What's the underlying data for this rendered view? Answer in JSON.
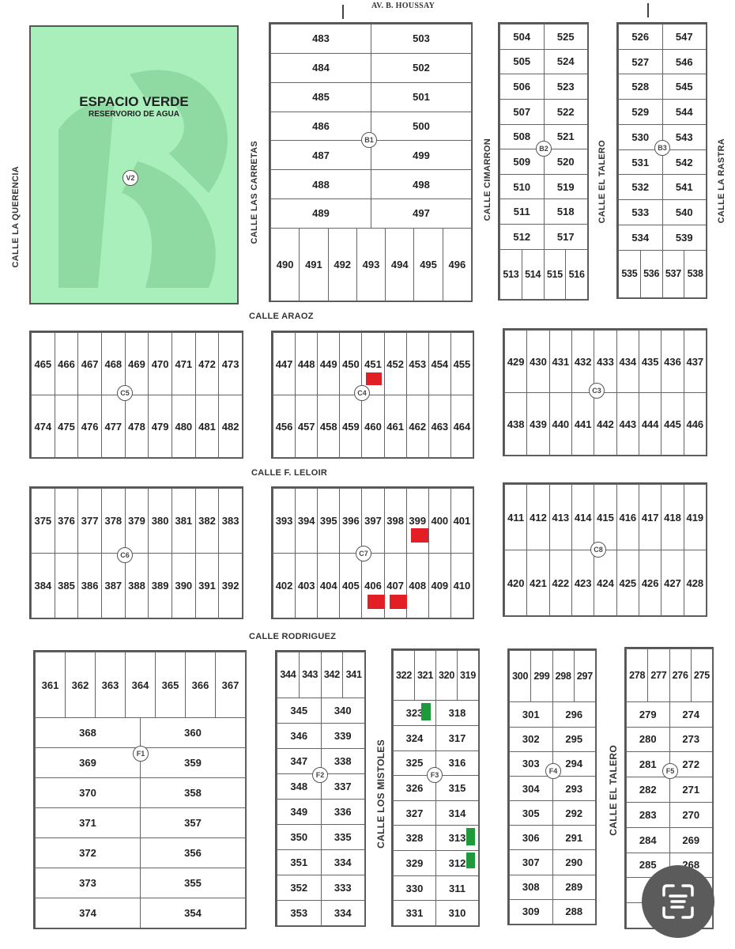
{
  "streets": {
    "top": "AV. B. HOUSSAY",
    "la_querencia": "CALLE LA QUERENCIA",
    "las_carretas": "CALLE LAS CARRETAS",
    "cimarron": "CALLE CIMARRON",
    "el_talero_top": "CALLE EL TALERO",
    "la_rastra": "CALLE LA RASTRA",
    "araoz": "CALLE ARAOZ",
    "leloir": "CALLE F. LELOIR",
    "rodriguez": "CALLE RODRIGUEZ",
    "los_mistoles": "CALLE LOS MISTOLES",
    "el_talero_bottom": "CALLE EL TALERO"
  },
  "green_space": {
    "label": "V2",
    "title": "ESPACIO VERDE",
    "subtitle": "RESERVORIO DE AGUA",
    "color": "#a8efbb"
  },
  "blocks": [
    {
      "id": "B1",
      "rows": [
        [
          "483",
          "503"
        ],
        [
          "484",
          "502"
        ],
        [
          "485",
          "501"
        ],
        [
          "486",
          "500"
        ],
        [
          "487",
          "499"
        ],
        [
          "488",
          "498"
        ],
        [
          "489",
          "497"
        ],
        [
          "490",
          "491",
          "492",
          "493",
          "494",
          "495",
          "496"
        ]
      ]
    },
    {
      "id": "B2",
      "rows": [
        [
          "504",
          "525"
        ],
        [
          "505",
          "524"
        ],
        [
          "506",
          "523"
        ],
        [
          "507",
          "522"
        ],
        [
          "508",
          "521"
        ],
        [
          "509",
          "520"
        ],
        [
          "510",
          "519"
        ],
        [
          "511",
          "518"
        ],
        [
          "512",
          "517"
        ],
        [
          "513",
          "514",
          "515",
          "516"
        ]
      ]
    },
    {
      "id": "B3",
      "rows": [
        [
          "526",
          "547"
        ],
        [
          "527",
          "546"
        ],
        [
          "528",
          "545"
        ],
        [
          "529",
          "544"
        ],
        [
          "530",
          "543"
        ],
        [
          "531",
          "542"
        ],
        [
          "532",
          "541"
        ],
        [
          "533",
          "540"
        ],
        [
          "534",
          "539"
        ],
        [
          "535",
          "536",
          "537",
          "538"
        ]
      ]
    },
    {
      "id": "C5",
      "rows": [
        [
          "465",
          "466",
          "467",
          "468",
          "469",
          "470",
          "471",
          "472",
          "473"
        ],
        [
          "474",
          "475",
          "476",
          "477",
          "478",
          "479",
          "480",
          "481",
          "482"
        ]
      ]
    },
    {
      "id": "C4",
      "rows": [
        [
          "447",
          "448",
          "449",
          "450",
          "451",
          "452",
          "453",
          "454",
          "455"
        ],
        [
          "456",
          "457",
          "458",
          "459",
          "460",
          "461",
          "462",
          "463",
          "464"
        ]
      ]
    },
    {
      "id": "C3",
      "rows": [
        [
          "429",
          "430",
          "431",
          "432",
          "433",
          "434",
          "435",
          "436",
          "437"
        ],
        [
          "438",
          "439",
          "440",
          "441",
          "442",
          "443",
          "444",
          "445",
          "446"
        ]
      ]
    },
    {
      "id": "C6",
      "rows": [
        [
          "375",
          "376",
          "377",
          "378",
          "379",
          "380",
          "381",
          "382",
          "383"
        ],
        [
          "384",
          "385",
          "386",
          "387",
          "388",
          "389",
          "390",
          "391",
          "392"
        ]
      ]
    },
    {
      "id": "C7",
      "rows": [
        [
          "393",
          "394",
          "395",
          "396",
          "397",
          "398",
          "399",
          "400",
          "401"
        ],
        [
          "402",
          "403",
          "404",
          "405",
          "406",
          "407",
          "408",
          "409",
          "410"
        ]
      ]
    },
    {
      "id": "C8",
      "rows": [
        [
          "411",
          "412",
          "413",
          "414",
          "415",
          "416",
          "417",
          "418",
          "419"
        ],
        [
          "420",
          "421",
          "422",
          "423",
          "424",
          "425",
          "426",
          "427",
          "428"
        ]
      ]
    },
    {
      "id": "F1",
      "rows": [
        [
          "361",
          "362",
          "363",
          "364",
          "365",
          "366",
          "367"
        ],
        [
          "368",
          "360"
        ],
        [
          "369",
          "359"
        ],
        [
          "370",
          "358"
        ],
        [
          "371",
          "357"
        ],
        [
          "372",
          "356"
        ],
        [
          "373",
          "355"
        ],
        [
          "374",
          "354"
        ]
      ]
    },
    {
      "id": "F2",
      "rows": [
        [
          "344",
          "343",
          "342",
          "341"
        ],
        [
          "345",
          "340"
        ],
        [
          "346",
          "339"
        ],
        [
          "347",
          "338"
        ],
        [
          "348",
          "337"
        ],
        [
          "349",
          "336"
        ],
        [
          "350",
          "335"
        ],
        [
          "351",
          "334"
        ],
        [
          "352",
          "333"
        ],
        [
          "353",
          "334"
        ]
      ]
    },
    {
      "id": "F3",
      "rows": [
        [
          "322",
          "321",
          "320",
          "319"
        ],
        [
          "323",
          "318"
        ],
        [
          "324",
          "317"
        ],
        [
          "325",
          "316"
        ],
        [
          "326",
          "315"
        ],
        [
          "327",
          "314"
        ],
        [
          "328",
          "313"
        ],
        [
          "329",
          "312"
        ],
        [
          "330",
          "311"
        ],
        [
          "331",
          "310"
        ]
      ]
    },
    {
      "id": "F4",
      "rows": [
        [
          "300",
          "299",
          "298",
          "297"
        ],
        [
          "301",
          "296"
        ],
        [
          "302",
          "295"
        ],
        [
          "303",
          "294"
        ],
        [
          "304",
          "293"
        ],
        [
          "305",
          "292"
        ],
        [
          "306",
          "291"
        ],
        [
          "307",
          "290"
        ],
        [
          "308",
          "289"
        ],
        [
          "309",
          "288"
        ]
      ]
    },
    {
      "id": "F5",
      "rows": [
        [
          "278",
          "277",
          "276",
          "275"
        ],
        [
          "279",
          "274"
        ],
        [
          "280",
          "273"
        ],
        [
          "281",
          "272"
        ],
        [
          "282",
          "271"
        ],
        [
          "283",
          "270"
        ],
        [
          "284",
          "269"
        ],
        [
          "285",
          "268"
        ],
        [
          "",
          ""
        ],
        [
          "",
          ""
        ]
      ]
    }
  ],
  "markers": [
    {
      "block": "C4",
      "lot": "460",
      "color": "#e31e24"
    },
    {
      "block": "C7",
      "lot": "408",
      "color": "#e31e24"
    },
    {
      "block": "C7",
      "lot": "406",
      "color": "#e31e24"
    },
    {
      "block": "C7",
      "lot": "407",
      "color": "#e31e24"
    },
    {
      "block": "F3",
      "lot": "323",
      "color": "#1e9a3a"
    },
    {
      "block": "F3",
      "lot": "313",
      "color": "#1e9a3a"
    },
    {
      "block": "F3",
      "lot": "312",
      "color": "#1e9a3a"
    }
  ],
  "overlay": {
    "icon": "text-scan-icon",
    "color": "#5b5b5b"
  }
}
